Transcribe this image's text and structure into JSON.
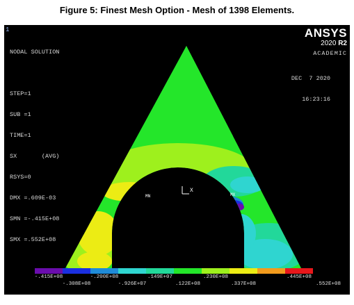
{
  "caption": "Figure 5: Finest Mesh Option - Mesh of 1398 Elements.",
  "window_number": "1",
  "solution_info": [
    "NODAL SOLUTION",
    "",
    "STEP=1",
    "SUB =1",
    "TIME=1",
    "SX       (AVG)",
    "RSYS=0",
    "DMX =.609E-03",
    "SMN =-.415E+08",
    "SMX =.552E+08"
  ],
  "brand": {
    "name": "ANSYS",
    "version": "2020",
    "release": "R2",
    "license": "ACADEMIC"
  },
  "date": "DEC  7 2020",
  "time": "16:23:16",
  "axis_label": "X",
  "min_label": "MN",
  "max_label": "MX",
  "legend": {
    "colors": [
      "#6a0dad",
      "#1a2fe0",
      "#1f8bd8",
      "#2fd5d0",
      "#22d89a",
      "#24e62a",
      "#9ef01d",
      "#ecec14",
      "#f29b1d",
      "#e8171b"
    ],
    "upper_labels": [
      "-.415E+08",
      "-.200E+08",
      ".149E+07",
      ".230E+08",
      ".445E+08"
    ],
    "lower_labels": [
      "-.308E+08",
      "-.926E+07",
      ".122E+08",
      ".337E+08",
      ".552E+08"
    ]
  }
}
